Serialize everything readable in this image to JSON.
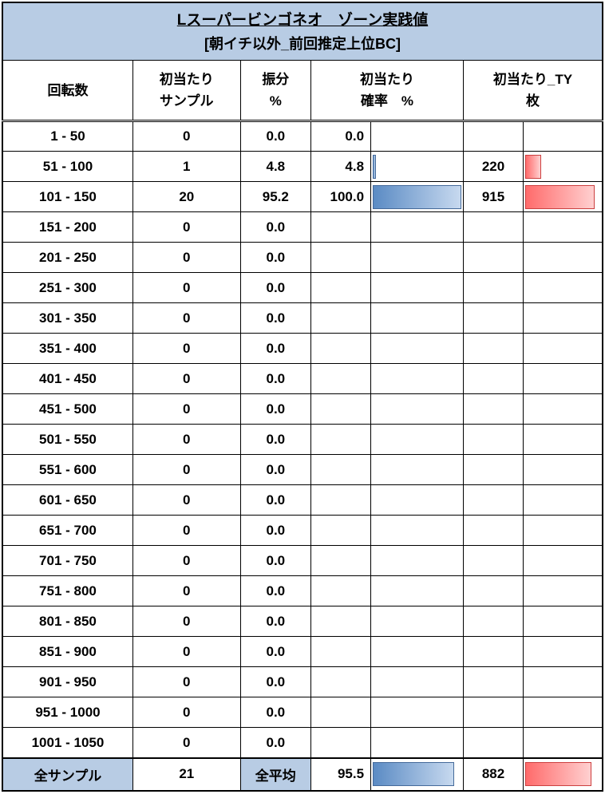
{
  "title": "Lスーパービンゴネオ　ゾーン実践値",
  "subtitle": "[朝イチ以外_前回推定上位BC]",
  "columns": {
    "c1": "回転数",
    "c2_l1": "初当たり",
    "c2_l2": "サンプル",
    "c3_l1": "振分",
    "c3_l2": "%",
    "c4_l1": "初当たり",
    "c4_l2": "確率　%",
    "c5_l1": "初当たり_TY",
    "c5_l2": "枚"
  },
  "rows": [
    {
      "range": "1 - 50",
      "sample": "0",
      "dist": "0.0",
      "prob": "0.0",
      "prob_bar": 0,
      "ty": "",
      "ty_bar": 0
    },
    {
      "range": "51 - 100",
      "sample": "1",
      "dist": "4.8",
      "prob": "4.8",
      "prob_bar": 4,
      "ty": "220",
      "ty_bar": 22
    },
    {
      "range": "101 - 150",
      "sample": "20",
      "dist": "95.2",
      "prob": "100.0",
      "prob_bar": 100,
      "ty": "915",
      "ty_bar": 95
    },
    {
      "range": "151 - 200",
      "sample": "0",
      "dist": "0.0",
      "prob": "",
      "prob_bar": 0,
      "ty": "",
      "ty_bar": 0
    },
    {
      "range": "201 - 250",
      "sample": "0",
      "dist": "0.0",
      "prob": "",
      "prob_bar": 0,
      "ty": "",
      "ty_bar": 0
    },
    {
      "range": "251 - 300",
      "sample": "0",
      "dist": "0.0",
      "prob": "",
      "prob_bar": 0,
      "ty": "",
      "ty_bar": 0
    },
    {
      "range": "301 - 350",
      "sample": "0",
      "dist": "0.0",
      "prob": "",
      "prob_bar": 0,
      "ty": "",
      "ty_bar": 0
    },
    {
      "range": "351 - 400",
      "sample": "0",
      "dist": "0.0",
      "prob": "",
      "prob_bar": 0,
      "ty": "",
      "ty_bar": 0
    },
    {
      "range": "401 - 450",
      "sample": "0",
      "dist": "0.0",
      "prob": "",
      "prob_bar": 0,
      "ty": "",
      "ty_bar": 0
    },
    {
      "range": "451 - 500",
      "sample": "0",
      "dist": "0.0",
      "prob": "",
      "prob_bar": 0,
      "ty": "",
      "ty_bar": 0
    },
    {
      "range": "501 - 550",
      "sample": "0",
      "dist": "0.0",
      "prob": "",
      "prob_bar": 0,
      "ty": "",
      "ty_bar": 0
    },
    {
      "range": "551 - 600",
      "sample": "0",
      "dist": "0.0",
      "prob": "",
      "prob_bar": 0,
      "ty": "",
      "ty_bar": 0
    },
    {
      "range": "601 - 650",
      "sample": "0",
      "dist": "0.0",
      "prob": "",
      "prob_bar": 0,
      "ty": "",
      "ty_bar": 0
    },
    {
      "range": "651 - 700",
      "sample": "0",
      "dist": "0.0",
      "prob": "",
      "prob_bar": 0,
      "ty": "",
      "ty_bar": 0
    },
    {
      "range": "701 - 750",
      "sample": "0",
      "dist": "0.0",
      "prob": "",
      "prob_bar": 0,
      "ty": "",
      "ty_bar": 0
    },
    {
      "range": "751 - 800",
      "sample": "0",
      "dist": "0.0",
      "prob": "",
      "prob_bar": 0,
      "ty": "",
      "ty_bar": 0
    },
    {
      "range": "801 - 850",
      "sample": "0",
      "dist": "0.0",
      "prob": "",
      "prob_bar": 0,
      "ty": "",
      "ty_bar": 0
    },
    {
      "range": "851 - 900",
      "sample": "0",
      "dist": "0.0",
      "prob": "",
      "prob_bar": 0,
      "ty": "",
      "ty_bar": 0
    },
    {
      "range": "901 - 950",
      "sample": "0",
      "dist": "0.0",
      "prob": "",
      "prob_bar": 0,
      "ty": "",
      "ty_bar": 0
    },
    {
      "range": "951 - 1000",
      "sample": "0",
      "dist": "0.0",
      "prob": "",
      "prob_bar": 0,
      "ty": "",
      "ty_bar": 0
    },
    {
      "range": "1001 - 1050",
      "sample": "0",
      "dist": "0.0",
      "prob": "",
      "prob_bar": 0,
      "ty": "",
      "ty_bar": 0
    }
  ],
  "footer": {
    "label1": "全サンプル",
    "total_sample": "21",
    "label2": "全平均",
    "avg_prob": "95.5",
    "avg_prob_bar": 92,
    "avg_ty": "882",
    "avg_ty_bar": 90
  },
  "colors": {
    "header_bg": "#b8cce4",
    "blue_bar_from": "#5b8bc4",
    "blue_bar_to": "#c7d9ef",
    "red_bar_from": "#ff6b6b",
    "red_bar_to": "#ffd0d0",
    "border": "#000000"
  }
}
